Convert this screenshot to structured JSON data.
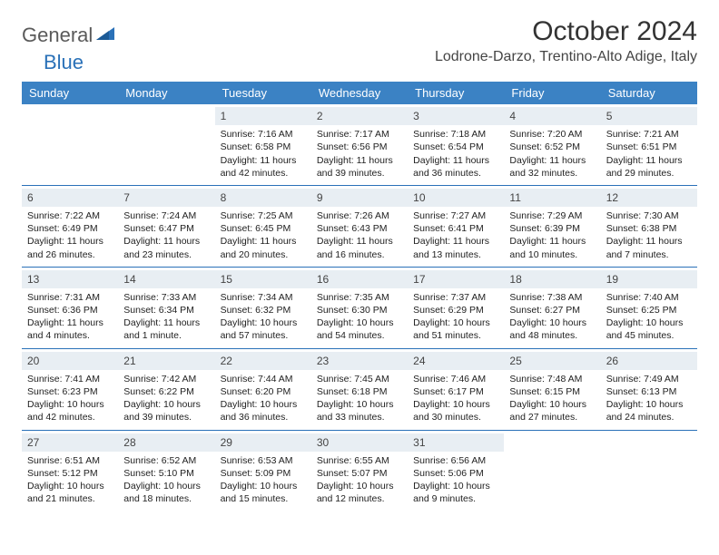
{
  "logo": {
    "text1": "General",
    "text2": "Blue"
  },
  "title": "October 2024",
  "location": "Lodrone-Darzo, Trentino-Alto Adige, Italy",
  "colors": {
    "header_bg": "#3b82c4",
    "header_text": "#ffffff",
    "daynum_bg": "#e8eef3",
    "border": "#2a71b8",
    "logo_gray": "#5a5a5a",
    "logo_blue": "#2a71b8"
  },
  "day_headers": [
    "Sunday",
    "Monday",
    "Tuesday",
    "Wednesday",
    "Thursday",
    "Friday",
    "Saturday"
  ],
  "weeks": [
    [
      {
        "blank": true
      },
      {
        "blank": true
      },
      {
        "n": "1",
        "sr": "Sunrise: 7:16 AM",
        "ss": "Sunset: 6:58 PM",
        "dl": "Daylight: 11 hours and 42 minutes."
      },
      {
        "n": "2",
        "sr": "Sunrise: 7:17 AM",
        "ss": "Sunset: 6:56 PM",
        "dl": "Daylight: 11 hours and 39 minutes."
      },
      {
        "n": "3",
        "sr": "Sunrise: 7:18 AM",
        "ss": "Sunset: 6:54 PM",
        "dl": "Daylight: 11 hours and 36 minutes."
      },
      {
        "n": "4",
        "sr": "Sunrise: 7:20 AM",
        "ss": "Sunset: 6:52 PM",
        "dl": "Daylight: 11 hours and 32 minutes."
      },
      {
        "n": "5",
        "sr": "Sunrise: 7:21 AM",
        "ss": "Sunset: 6:51 PM",
        "dl": "Daylight: 11 hours and 29 minutes."
      }
    ],
    [
      {
        "n": "6",
        "sr": "Sunrise: 7:22 AM",
        "ss": "Sunset: 6:49 PM",
        "dl": "Daylight: 11 hours and 26 minutes."
      },
      {
        "n": "7",
        "sr": "Sunrise: 7:24 AM",
        "ss": "Sunset: 6:47 PM",
        "dl": "Daylight: 11 hours and 23 minutes."
      },
      {
        "n": "8",
        "sr": "Sunrise: 7:25 AM",
        "ss": "Sunset: 6:45 PM",
        "dl": "Daylight: 11 hours and 20 minutes."
      },
      {
        "n": "9",
        "sr": "Sunrise: 7:26 AM",
        "ss": "Sunset: 6:43 PM",
        "dl": "Daylight: 11 hours and 16 minutes."
      },
      {
        "n": "10",
        "sr": "Sunrise: 7:27 AM",
        "ss": "Sunset: 6:41 PM",
        "dl": "Daylight: 11 hours and 13 minutes."
      },
      {
        "n": "11",
        "sr": "Sunrise: 7:29 AM",
        "ss": "Sunset: 6:39 PM",
        "dl": "Daylight: 11 hours and 10 minutes."
      },
      {
        "n": "12",
        "sr": "Sunrise: 7:30 AM",
        "ss": "Sunset: 6:38 PM",
        "dl": "Daylight: 11 hours and 7 minutes."
      }
    ],
    [
      {
        "n": "13",
        "sr": "Sunrise: 7:31 AM",
        "ss": "Sunset: 6:36 PM",
        "dl": "Daylight: 11 hours and 4 minutes."
      },
      {
        "n": "14",
        "sr": "Sunrise: 7:33 AM",
        "ss": "Sunset: 6:34 PM",
        "dl": "Daylight: 11 hours and 1 minute."
      },
      {
        "n": "15",
        "sr": "Sunrise: 7:34 AM",
        "ss": "Sunset: 6:32 PM",
        "dl": "Daylight: 10 hours and 57 minutes."
      },
      {
        "n": "16",
        "sr": "Sunrise: 7:35 AM",
        "ss": "Sunset: 6:30 PM",
        "dl": "Daylight: 10 hours and 54 minutes."
      },
      {
        "n": "17",
        "sr": "Sunrise: 7:37 AM",
        "ss": "Sunset: 6:29 PM",
        "dl": "Daylight: 10 hours and 51 minutes."
      },
      {
        "n": "18",
        "sr": "Sunrise: 7:38 AM",
        "ss": "Sunset: 6:27 PM",
        "dl": "Daylight: 10 hours and 48 minutes."
      },
      {
        "n": "19",
        "sr": "Sunrise: 7:40 AM",
        "ss": "Sunset: 6:25 PM",
        "dl": "Daylight: 10 hours and 45 minutes."
      }
    ],
    [
      {
        "n": "20",
        "sr": "Sunrise: 7:41 AM",
        "ss": "Sunset: 6:23 PM",
        "dl": "Daylight: 10 hours and 42 minutes."
      },
      {
        "n": "21",
        "sr": "Sunrise: 7:42 AM",
        "ss": "Sunset: 6:22 PM",
        "dl": "Daylight: 10 hours and 39 minutes."
      },
      {
        "n": "22",
        "sr": "Sunrise: 7:44 AM",
        "ss": "Sunset: 6:20 PM",
        "dl": "Daylight: 10 hours and 36 minutes."
      },
      {
        "n": "23",
        "sr": "Sunrise: 7:45 AM",
        "ss": "Sunset: 6:18 PM",
        "dl": "Daylight: 10 hours and 33 minutes."
      },
      {
        "n": "24",
        "sr": "Sunrise: 7:46 AM",
        "ss": "Sunset: 6:17 PM",
        "dl": "Daylight: 10 hours and 30 minutes."
      },
      {
        "n": "25",
        "sr": "Sunrise: 7:48 AM",
        "ss": "Sunset: 6:15 PM",
        "dl": "Daylight: 10 hours and 27 minutes."
      },
      {
        "n": "26",
        "sr": "Sunrise: 7:49 AM",
        "ss": "Sunset: 6:13 PM",
        "dl": "Daylight: 10 hours and 24 minutes."
      }
    ],
    [
      {
        "n": "27",
        "sr": "Sunrise: 6:51 AM",
        "ss": "Sunset: 5:12 PM",
        "dl": "Daylight: 10 hours and 21 minutes."
      },
      {
        "n": "28",
        "sr": "Sunrise: 6:52 AM",
        "ss": "Sunset: 5:10 PM",
        "dl": "Daylight: 10 hours and 18 minutes."
      },
      {
        "n": "29",
        "sr": "Sunrise: 6:53 AM",
        "ss": "Sunset: 5:09 PM",
        "dl": "Daylight: 10 hours and 15 minutes."
      },
      {
        "n": "30",
        "sr": "Sunrise: 6:55 AM",
        "ss": "Sunset: 5:07 PM",
        "dl": "Daylight: 10 hours and 12 minutes."
      },
      {
        "n": "31",
        "sr": "Sunrise: 6:56 AM",
        "ss": "Sunset: 5:06 PM",
        "dl": "Daylight: 10 hours and 9 minutes."
      },
      {
        "blank": true
      },
      {
        "blank": true
      }
    ]
  ]
}
